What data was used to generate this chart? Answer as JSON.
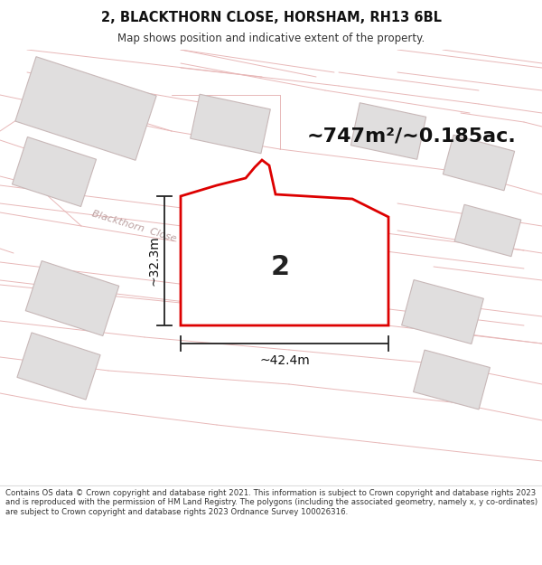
{
  "title": "2, BLACKTHORN CLOSE, HORSHAM, RH13 6BL",
  "subtitle": "Map shows position and indicative extent of the property.",
  "area_text": "~747m²/~0.185ac.",
  "plot_number": "2",
  "width_label": "~42.4m",
  "height_label": "~32.3m",
  "footer": "Contains OS data © Crown copyright and database right 2021. This information is subject to Crown copyright and database rights 2023 and is reproduced with the permission of HM Land Registry. The polygons (including the associated geometry, namely x, y co-ordinates) are subject to Crown copyright and database rights 2023 Ordnance Survey 100026316.",
  "map_bg": "#f7f2f2",
  "road_color": "#e8b8b8",
  "plot_fill": "#ffffff",
  "plot_edge": "#dd0000",
  "building_fill": "#e0dede",
  "building_edge": "#c8b8b8",
  "footer_bg": "#ffffff",
  "title_fontsize": 10.5,
  "subtitle_fontsize": 8.5,
  "area_fontsize": 16,
  "footer_fontsize": 6.2,
  "road_color_light": "#f0d0d0"
}
